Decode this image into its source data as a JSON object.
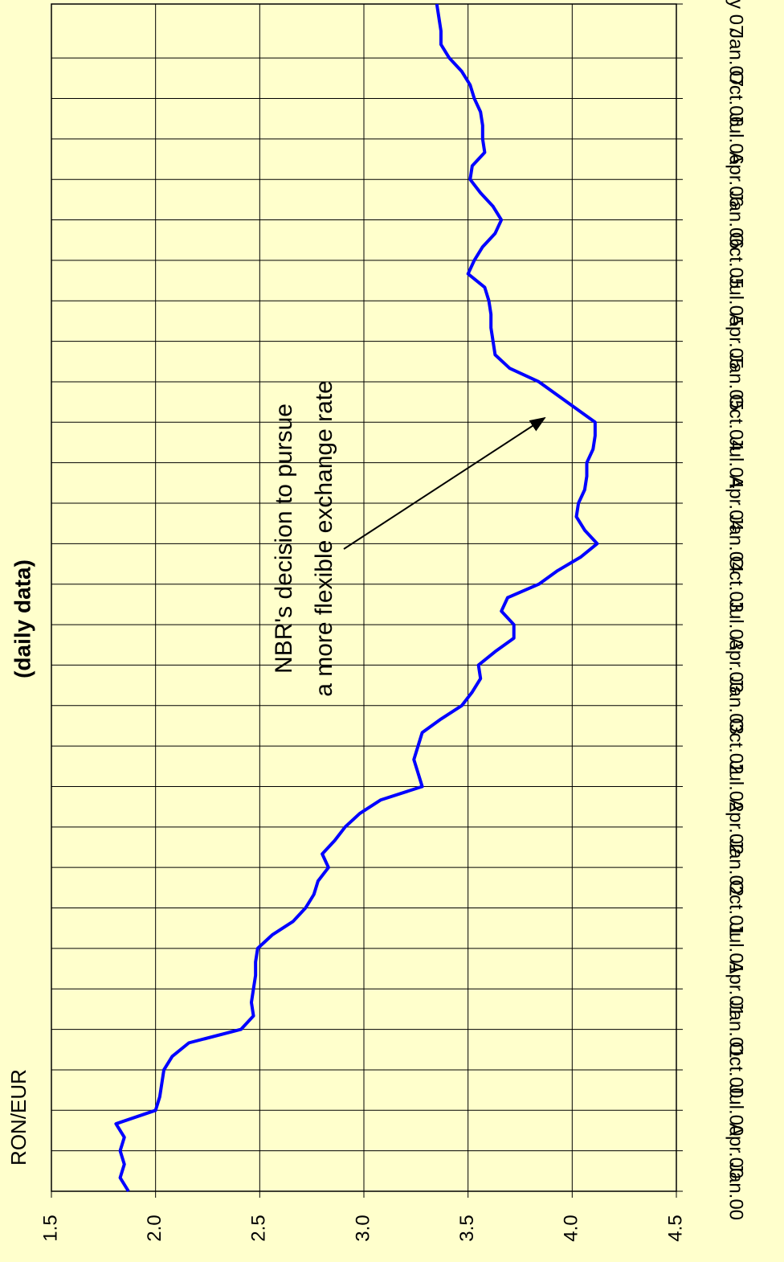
{
  "chart_data": {
    "type": "line",
    "title": "(daily data)",
    "y_label": "RON/EUR",
    "annotation": [
      "NBR's decision to pursue",
      "a more flexible exchange rate"
    ],
    "x": [
      "2000-01",
      "2000-02",
      "2000-03",
      "2000-04",
      "2000-05",
      "2000-06",
      "2000-07",
      "2000-08",
      "2000-09",
      "2000-10",
      "2000-11",
      "2000-12",
      "2001-01",
      "2001-02",
      "2001-03",
      "2001-04",
      "2001-05",
      "2001-06",
      "2001-07",
      "2001-08",
      "2001-09",
      "2001-10",
      "2001-11",
      "2001-12",
      "2002-01",
      "2002-02",
      "2002-03",
      "2002-04",
      "2002-05",
      "2002-06",
      "2002-07",
      "2002-08",
      "2002-09",
      "2002-10",
      "2002-11",
      "2002-12",
      "2003-01",
      "2003-02",
      "2003-03",
      "2003-04",
      "2003-05",
      "2003-06",
      "2003-07",
      "2003-08",
      "2003-09",
      "2003-10",
      "2003-11",
      "2003-12",
      "2004-01",
      "2004-02",
      "2004-03",
      "2004-04",
      "2004-05",
      "2004-06",
      "2004-07",
      "2004-08",
      "2004-09",
      "2004-10",
      "2004-11",
      "2004-12",
      "2005-01",
      "2005-02",
      "2005-03",
      "2005-04",
      "2005-05",
      "2005-06",
      "2005-07",
      "2005-08",
      "2005-09",
      "2005-10",
      "2005-11",
      "2005-12",
      "2006-01",
      "2006-02",
      "2006-03",
      "2006-04",
      "2006-05",
      "2006-06",
      "2006-07",
      "2006-08",
      "2006-09",
      "2006-10",
      "2006-11",
      "2006-12",
      "2007-01",
      "2007-02",
      "2007-03",
      "2007-04",
      "2007-05"
    ],
    "series": [
      {
        "name": "RON/EUR",
        "color": "#0000ff",
        "values": [
          1.87,
          1.83,
          1.85,
          1.83,
          1.85,
          1.81,
          2.0,
          2.02,
          2.03,
          2.04,
          2.08,
          2.16,
          2.41,
          2.47,
          2.46,
          2.47,
          2.48,
          2.48,
          2.49,
          2.56,
          2.66,
          2.72,
          2.76,
          2.78,
          2.83,
          2.8,
          2.86,
          2.91,
          2.98,
          3.08,
          3.28,
          3.26,
          3.24,
          3.26,
          3.28,
          3.37,
          3.47,
          3.52,
          3.56,
          3.55,
          3.63,
          3.72,
          3.72,
          3.66,
          3.69,
          3.84,
          3.93,
          4.04,
          4.12,
          4.06,
          4.02,
          4.03,
          4.06,
          4.07,
          4.07,
          4.1,
          4.11,
          4.11,
          4.02,
          3.93,
          3.84,
          3.7,
          3.63,
          3.62,
          3.61,
          3.61,
          3.6,
          3.58,
          3.5,
          3.53,
          3.57,
          3.63,
          3.66,
          3.62,
          3.56,
          3.51,
          3.52,
          3.58,
          3.57,
          3.57,
          3.56,
          3.53,
          3.51,
          3.47,
          3.41,
          3.37,
          3.37,
          3.36,
          3.35
        ]
      }
    ],
    "xlim": [
      "2000-01",
      "2007-05"
    ],
    "xticks": [
      {
        "value": "2000-01",
        "label": "Jan.00"
      },
      {
        "value": "2000-04",
        "label": "Apr.00"
      },
      {
        "value": "2000-07",
        "label": "Jul.00"
      },
      {
        "value": "2000-10",
        "label": "Oct.00"
      },
      {
        "value": "2001-01",
        "label": "Jan.01"
      },
      {
        "value": "2001-04",
        "label": "Apr.01"
      },
      {
        "value": "2001-07",
        "label": "Jul.01"
      },
      {
        "value": "2001-10",
        "label": "Oct.01"
      },
      {
        "value": "2002-01",
        "label": "Jan.02"
      },
      {
        "value": "2002-04",
        "label": "Apr.02"
      },
      {
        "value": "2002-07",
        "label": "Jul.02"
      },
      {
        "value": "2002-10",
        "label": "Oct.02"
      },
      {
        "value": "2003-01",
        "label": "Jan.03"
      },
      {
        "value": "2003-04",
        "label": "Apr.03"
      },
      {
        "value": "2003-07",
        "label": "Jul.03"
      },
      {
        "value": "2003-10",
        "label": "Oct.03"
      },
      {
        "value": "2004-01",
        "label": "Jan.04"
      },
      {
        "value": "2004-04",
        "label": "Apr.04"
      },
      {
        "value": "2004-07",
        "label": "Jul.04"
      },
      {
        "value": "2004-10",
        "label": "Oct.04"
      },
      {
        "value": "2005-01",
        "label": "Jan.05"
      },
      {
        "value": "2005-04",
        "label": "Apr.05"
      },
      {
        "value": "2005-07",
        "label": "Jul.05"
      },
      {
        "value": "2005-10",
        "label": "Oct.05"
      },
      {
        "value": "2006-01",
        "label": "Jan.06"
      },
      {
        "value": "2006-04",
        "label": "Apr.06"
      },
      {
        "value": "2006-07",
        "label": "Jul.06"
      },
      {
        "value": "2006-10",
        "label": "Oct.06"
      },
      {
        "value": "2007-01",
        "label": "Jan.07"
      },
      {
        "value": "2007-05",
        "label": "May 07"
      }
    ],
    "ylim": [
      1.5,
      4.5
    ],
    "yticks": [
      1.5,
      {
        "value": 2,
        "label": "2.0"
      },
      2.5,
      {
        "value": 3,
        "label": "3.0"
      },
      3.5,
      {
        "value": 4,
        "label": "4.0"
      },
      4.5
    ],
    "grid": true
  }
}
